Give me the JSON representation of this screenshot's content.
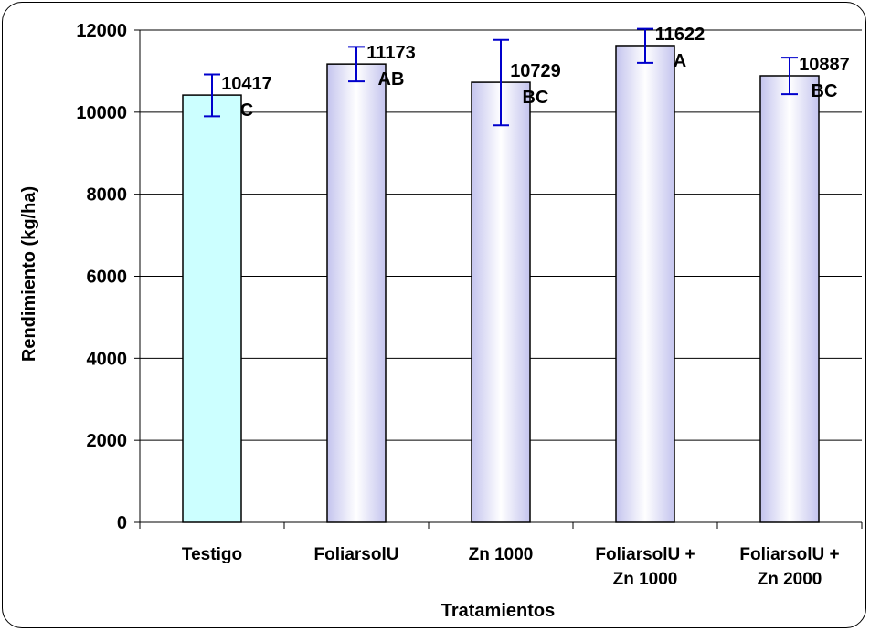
{
  "chart_data": {
    "type": "bar",
    "title": "",
    "xlabel": "Tratamientos",
    "ylabel": "Rendimiento (kg/ha)",
    "ylim": [
      0,
      12000
    ],
    "yticks": [
      "0",
      "2000",
      "4000",
      "6000",
      "8000",
      "10000",
      "12000"
    ],
    "grid": true,
    "categories": [
      [
        "Testigo"
      ],
      [
        "FoliarsolU"
      ],
      [
        "Zn 1000"
      ],
      [
        "FoliarsolU +",
        "Zn 1000"
      ],
      [
        "FoliarsolU +",
        "Zn 2000"
      ]
    ],
    "values": [
      10417,
      11173,
      10729,
      11622,
      10887
    ],
    "value_labels": [
      "10417",
      "11173",
      "10729",
      "11622",
      "10887"
    ],
    "error_low": [
      9900,
      10750,
      9680,
      11200,
      10440
    ],
    "error_high": [
      10920,
      11590,
      11760,
      12030,
      11330
    ],
    "letters": [
      "C",
      "AB",
      "BC",
      "A",
      "BC"
    ],
    "colors": {
      "testigo_fill": "#ccffff",
      "bar_edge": "#c8c8f0",
      "bar_center": "#ffffff",
      "outline": "#000000",
      "error_bar": "#0000cc"
    }
  }
}
